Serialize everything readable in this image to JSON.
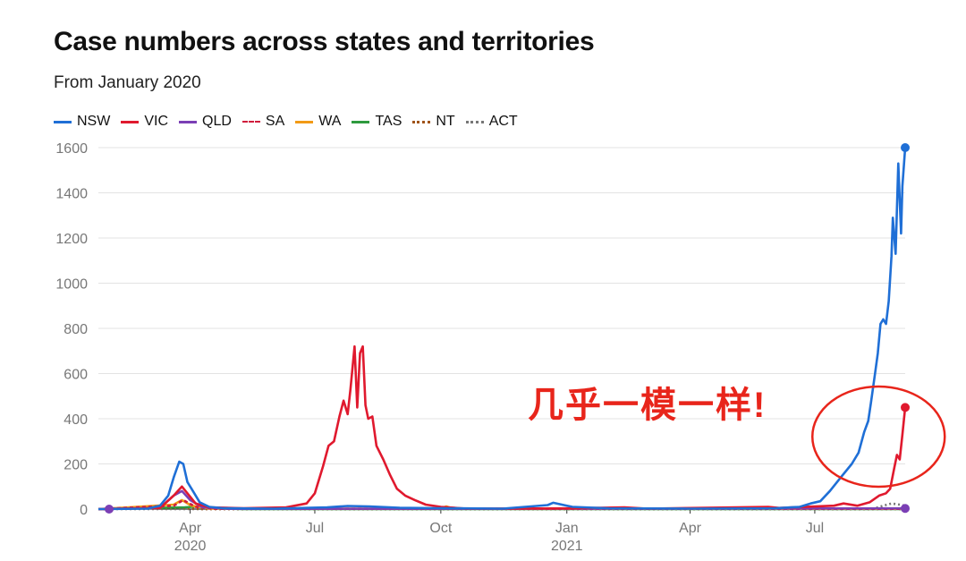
{
  "chart_data": {
    "type": "line",
    "title": "Case numbers across states and territories",
    "subtitle": "From January 2020",
    "xlabel": "",
    "ylabel": "",
    "ylim": [
      0,
      1600
    ],
    "yticks": [
      0,
      200,
      400,
      600,
      800,
      1000,
      1200,
      1400,
      1600
    ],
    "xticks": [
      {
        "date": "2020-04-01",
        "label": "Apr",
        "sublabel": "2020"
      },
      {
        "date": "2020-07-01",
        "label": "Jul",
        "sublabel": ""
      },
      {
        "date": "2020-10-01",
        "label": "Oct",
        "sublabel": ""
      },
      {
        "date": "2021-01-01",
        "label": "Jan",
        "sublabel": "2021"
      },
      {
        "date": "2021-04-01",
        "label": "Apr",
        "sublabel": ""
      },
      {
        "date": "2021-07-01",
        "label": "Jul",
        "sublabel": ""
      }
    ],
    "xrange": [
      "2020-01-25",
      "2021-09-05"
    ],
    "grid": true,
    "legend_position": "top-left",
    "series": [
      {
        "name": "NSW",
        "color": "#1f6fd6",
        "dash": "solid",
        "end_marker": true,
        "points": [
          [
            "2020-01-25",
            0
          ],
          [
            "2020-03-01",
            2
          ],
          [
            "2020-03-10",
            15
          ],
          [
            "2020-03-16",
            60
          ],
          [
            "2020-03-20",
            140
          ],
          [
            "2020-03-24",
            210
          ],
          [
            "2020-03-27",
            200
          ],
          [
            "2020-03-30",
            120
          ],
          [
            "2020-04-03",
            80
          ],
          [
            "2020-04-08",
            30
          ],
          [
            "2020-04-15",
            10
          ],
          [
            "2020-04-25",
            4
          ],
          [
            "2020-06-01",
            2
          ],
          [
            "2020-07-10",
            8
          ],
          [
            "2020-07-25",
            14
          ],
          [
            "2020-08-10",
            12
          ],
          [
            "2020-09-01",
            6
          ],
          [
            "2020-10-01",
            4
          ],
          [
            "2020-11-15",
            2
          ],
          [
            "2020-12-18",
            18
          ],
          [
            "2020-12-22",
            28
          ],
          [
            "2021-01-05",
            10
          ],
          [
            "2021-02-01",
            3
          ],
          [
            "2021-04-01",
            2
          ],
          [
            "2021-06-01",
            3
          ],
          [
            "2021-06-20",
            10
          ],
          [
            "2021-06-28",
            25
          ],
          [
            "2021-07-05",
            35
          ],
          [
            "2021-07-12",
            80
          ],
          [
            "2021-07-20",
            140
          ],
          [
            "2021-07-28",
            200
          ],
          [
            "2021-08-02",
            250
          ],
          [
            "2021-08-06",
            340
          ],
          [
            "2021-08-09",
            390
          ],
          [
            "2021-08-11",
            470
          ],
          [
            "2021-08-14",
            600
          ],
          [
            "2021-08-16",
            690
          ],
          [
            "2021-08-18",
            820
          ],
          [
            "2021-08-20",
            840
          ],
          [
            "2021-08-22",
            820
          ],
          [
            "2021-08-24",
            920
          ],
          [
            "2021-08-26",
            1120
          ],
          [
            "2021-08-27",
            1290
          ],
          [
            "2021-08-29",
            1130
          ],
          [
            "2021-08-31",
            1530
          ],
          [
            "2021-09-02",
            1220
          ],
          [
            "2021-09-03",
            1430
          ],
          [
            "2021-09-05",
            1600
          ]
        ]
      },
      {
        "name": "VIC",
        "color": "#e0192e",
        "dash": "solid",
        "end_marker": true,
        "points": [
          [
            "2020-01-25",
            0
          ],
          [
            "2020-03-10",
            5
          ],
          [
            "2020-03-20",
            60
          ],
          [
            "2020-03-26",
            100
          ],
          [
            "2020-03-30",
            70
          ],
          [
            "2020-04-05",
            25
          ],
          [
            "2020-04-15",
            8
          ],
          [
            "2020-05-10",
            4
          ],
          [
            "2020-06-10",
            8
          ],
          [
            "2020-06-25",
            25
          ],
          [
            "2020-07-01",
            70
          ],
          [
            "2020-07-07",
            190
          ],
          [
            "2020-07-11",
            280
          ],
          [
            "2020-07-15",
            300
          ],
          [
            "2020-07-19",
            410
          ],
          [
            "2020-07-22",
            480
          ],
          [
            "2020-07-25",
            420
          ],
          [
            "2020-07-27",
            530
          ],
          [
            "2020-07-30",
            720
          ],
          [
            "2020-08-01",
            450
          ],
          [
            "2020-08-03",
            690
          ],
          [
            "2020-08-05",
            720
          ],
          [
            "2020-08-07",
            460
          ],
          [
            "2020-08-09",
            400
          ],
          [
            "2020-08-12",
            410
          ],
          [
            "2020-08-15",
            280
          ],
          [
            "2020-08-20",
            220
          ],
          [
            "2020-08-25",
            150
          ],
          [
            "2020-08-30",
            90
          ],
          [
            "2020-09-05",
            60
          ],
          [
            "2020-09-12",
            40
          ],
          [
            "2020-09-20",
            20
          ],
          [
            "2020-10-01",
            10
          ],
          [
            "2020-10-20",
            2
          ],
          [
            "2021-01-01",
            3
          ],
          [
            "2021-02-12",
            8
          ],
          [
            "2021-03-01",
            2
          ],
          [
            "2021-05-28",
            10
          ],
          [
            "2021-06-05",
            5
          ],
          [
            "2021-07-15",
            15
          ],
          [
            "2021-07-22",
            25
          ],
          [
            "2021-08-01",
            15
          ],
          [
            "2021-08-10",
            30
          ],
          [
            "2021-08-17",
            60
          ],
          [
            "2021-08-22",
            70
          ],
          [
            "2021-08-25",
            90
          ],
          [
            "2021-08-28",
            180
          ],
          [
            "2021-08-30",
            240
          ],
          [
            "2021-09-01",
            220
          ],
          [
            "2021-09-03",
            330
          ],
          [
            "2021-09-05",
            450
          ]
        ]
      },
      {
        "name": "QLD",
        "color": "#7b3fb5",
        "dash": "solid",
        "end_marker": true,
        "points": [
          [
            "2020-01-25",
            0
          ],
          [
            "2020-03-10",
            5
          ],
          [
            "2020-03-20",
            60
          ],
          [
            "2020-03-26",
            80
          ],
          [
            "2020-04-01",
            40
          ],
          [
            "2020-04-10",
            8
          ],
          [
            "2020-05-01",
            1
          ],
          [
            "2021-09-05",
            3
          ]
        ]
      },
      {
        "name": "SA",
        "color": "#d01c3b",
        "dash": "dashed",
        "end_marker": false,
        "points": [
          [
            "2020-01-25",
            0
          ],
          [
            "2020-03-20",
            15
          ],
          [
            "2020-03-27",
            40
          ],
          [
            "2020-04-05",
            10
          ],
          [
            "2020-04-20",
            1
          ],
          [
            "2021-09-05",
            1
          ]
        ]
      },
      {
        "name": "WA",
        "color": "#f29a16",
        "dash": "solid",
        "end_marker": false,
        "points": [
          [
            "2020-01-25",
            0
          ],
          [
            "2020-03-20",
            20
          ],
          [
            "2020-03-26",
            40
          ],
          [
            "2020-04-02",
            15
          ],
          [
            "2020-04-15",
            2
          ],
          [
            "2020-09-30",
            2
          ],
          [
            "2020-10-05",
            12
          ],
          [
            "2020-10-10",
            2
          ],
          [
            "2021-09-05",
            1
          ]
        ]
      },
      {
        "name": "TAS",
        "color": "#2e9a3e",
        "dash": "solid",
        "end_marker": false,
        "points": [
          [
            "2020-01-25",
            0
          ],
          [
            "2020-03-28",
            8
          ],
          [
            "2020-04-08",
            12
          ],
          [
            "2020-04-20",
            3
          ],
          [
            "2020-05-10",
            0
          ],
          [
            "2021-09-05",
            0
          ]
        ]
      },
      {
        "name": "NT",
        "color": "#a0541a",
        "dash": "dotted",
        "end_marker": false,
        "points": [
          [
            "2020-01-25",
            0
          ],
          [
            "2020-03-25",
            5
          ],
          [
            "2020-04-10",
            0
          ],
          [
            "2021-09-05",
            0
          ]
        ]
      },
      {
        "name": "ACT",
        "color": "#777777",
        "dash": "dotted",
        "end_marker": false,
        "points": [
          [
            "2020-01-25",
            0
          ],
          [
            "2021-08-12",
            0
          ],
          [
            "2021-08-20",
            15
          ],
          [
            "2021-08-26",
            25
          ],
          [
            "2021-09-01",
            20
          ],
          [
            "2021-09-05",
            15
          ]
        ]
      }
    ],
    "annotation": {
      "text": "几乎一模一样!",
      "color": "#e8251b",
      "circle_center_date": "2021-08-12",
      "circle_center_value": 400
    }
  }
}
